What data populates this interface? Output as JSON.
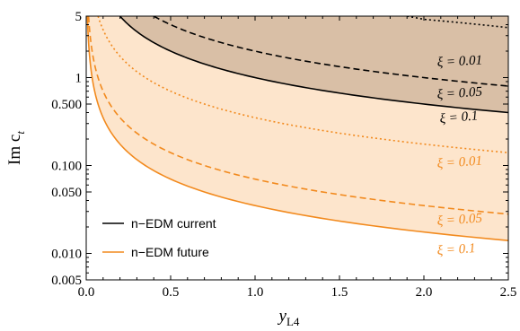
{
  "chart_data": {
    "type": "line",
    "xlabel": "y",
    "xlabel_sub": "L4",
    "ylabel": "Im c",
    "ylabel_sub": "t",
    "yscale": "log",
    "xlim": [
      0,
      2.5
    ],
    "ylim": [
      0.005,
      5
    ],
    "xticks": [
      0.0,
      0.5,
      1.0,
      1.5,
      2.0,
      2.5
    ],
    "xtick_labels": [
      "0.0",
      "0.5",
      "1.0",
      "1.5",
      "2.0",
      "2.5"
    ],
    "yticks": [
      0.005,
      0.01,
      0.05,
      0.1,
      0.5,
      1,
      5
    ],
    "ytick_labels": [
      "0.005",
      "0.010",
      "0.050",
      "0.100",
      "0.500",
      "1",
      "5"
    ],
    "legend_position": "bottom-left",
    "series": [
      {
        "name": "n−EDM current",
        "group": "current",
        "xi_label": "ξ = 0.1",
        "style": "solid",
        "x": [
          0.2,
          0.5,
          1.0,
          1.5,
          2.0,
          2.5
        ],
        "values": [
          5.0,
          2.0,
          1.0,
          0.667,
          0.5,
          0.4
        ],
        "filled": true
      },
      {
        "group": "current",
        "xi_label": "ξ = 0.05",
        "style": "dashed",
        "x": [
          0.4,
          0.5,
          1.0,
          1.5,
          2.0,
          2.5
        ],
        "values": [
          5.0,
          4.0,
          2.0,
          1.333,
          1.0,
          0.8
        ]
      },
      {
        "group": "current",
        "xi_label": "ξ = 0.01",
        "style": "dotted",
        "x": [
          1.9,
          2.0,
          2.5
        ],
        "values": [
          5.0,
          4.6,
          3.7
        ]
      },
      {
        "name": "n−EDM future",
        "group": "future",
        "xi_label": "ξ = 0.1",
        "style": "solid",
        "x": [
          0.007,
          0.05,
          0.1,
          0.25,
          0.5,
          1.0,
          1.5,
          2.0,
          2.5
        ],
        "values": [
          5.0,
          0.7,
          0.35,
          0.14,
          0.07,
          0.035,
          0.0233,
          0.0175,
          0.014
        ],
        "filled": true
      },
      {
        "group": "future",
        "xi_label": "ξ = 0.05",
        "style": "dashed",
        "x": [
          0.014,
          0.05,
          0.1,
          0.25,
          0.5,
          1.0,
          1.5,
          2.0,
          2.5
        ],
        "values": [
          5.0,
          1.4,
          0.7,
          0.28,
          0.14,
          0.07,
          0.0467,
          0.035,
          0.028
        ]
      },
      {
        "group": "future",
        "xi_label": "ξ = 0.01",
        "style": "dotted",
        "x": [
          0.07,
          0.1,
          0.25,
          0.5,
          1.0,
          1.5,
          2.0,
          2.5
        ],
        "values": [
          5.0,
          3.5,
          1.4,
          0.7,
          0.35,
          0.233,
          0.175,
          0.14
        ]
      }
    ],
    "legend": [
      {
        "label": "n−EDM current",
        "color": "#000000"
      },
      {
        "label": "n−EDM future",
        "color": "#f28a1e"
      }
    ]
  },
  "colors": {
    "current_line": "#000000",
    "current_fill": "#d9bfa6",
    "future_line": "#f28a1e",
    "future_fill": "#fde5cc",
    "curve_label_current": "#000000",
    "curve_label_future": "#f28a1e"
  }
}
